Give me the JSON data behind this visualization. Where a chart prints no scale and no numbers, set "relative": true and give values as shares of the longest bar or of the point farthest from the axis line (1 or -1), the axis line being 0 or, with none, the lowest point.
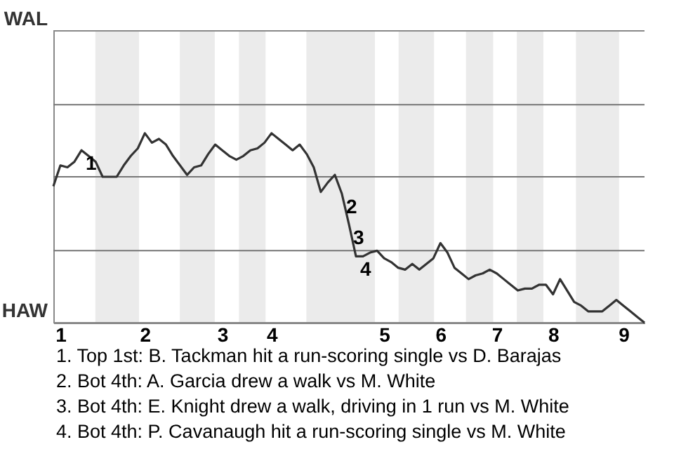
{
  "chart_data": {
    "type": "line",
    "relative": true,
    "categories": [
      null,
      "1",
      null,
      null,
      null,
      null,
      null,
      null,
      null,
      null,
      null,
      null,
      null,
      "2",
      null,
      null,
      null,
      null,
      null,
      null,
      null,
      null,
      null,
      null,
      "3",
      null,
      null,
      null,
      null,
      null,
      null,
      "4",
      null,
      null,
      null,
      null,
      null,
      null,
      null,
      null,
      null,
      null,
      null,
      null,
      null,
      null,
      null,
      "5",
      null,
      null,
      null,
      null,
      null,
      null,
      null,
      "6",
      null,
      null,
      null,
      null,
      null,
      null,
      null,
      "7",
      null,
      null,
      null,
      null,
      null,
      null,
      null,
      "8",
      null,
      null,
      null,
      null,
      null,
      null,
      null,
      null,
      null,
      "9",
      null,
      null,
      null
    ],
    "series": [
      {
        "color": "#333333",
        "values": [
          0.72,
          0.83,
          0.82,
          0.85,
          0.91,
          0.88,
          0.85,
          0.77,
          0.77,
          0.77,
          0.83,
          0.88,
          0.92,
          1,
          0.95,
          0.97,
          0.94,
          0.88,
          0.83,
          0.78,
          0.82,
          0.83,
          0.89,
          0.94,
          0.91,
          0.88,
          0.86,
          0.88,
          0.91,
          0.92,
          0.95,
          1,
          0.97,
          0.94,
          0.91,
          0.94,
          0.89,
          0.82,
          0.69,
          0.74,
          0.78,
          0.68,
          0.52,
          0.35,
          0.35,
          0.37,
          0.38,
          0.34,
          0.32,
          0.29,
          0.28,
          0.31,
          0.28,
          0.31,
          0.34,
          0.42,
          0.37,
          0.29,
          0.26,
          0.23,
          0.25,
          0.26,
          0.28,
          0.26,
          0.23,
          0.2,
          0.17,
          0.18,
          0.18,
          0.2,
          0.2,
          0.15,
          0.23,
          0.17,
          0.11,
          0.09,
          0.06,
          0.06,
          0.06,
          0.09,
          0.12,
          0.09,
          0.06,
          0.03,
          0
        ]
      }
    ],
    "ref_lines": [
      {
        "axis": "y",
        "value": 0,
        "label": "HAW",
        "color": "#888888"
      },
      {
        "axis": "y",
        "value": 0.38,
        "color": "#777777"
      },
      {
        "axis": "y",
        "value": 0.77,
        "color": "#777777"
      },
      {
        "axis": "y",
        "value": 1.15,
        "color": "#777777"
      },
      {
        "axis": "y",
        "value": 1.54,
        "label": "WAL",
        "color": "#888888"
      }
    ],
    "annotations": [
      "1",
      "2",
      "3",
      "4",
      "1. Top 1st: B. Tackman hit a run-scoring single vs D. Barajas",
      "2. Bot 4th: A. Garcia drew a walk vs M. White",
      "3. Bot 4th: E. Knight drew a walk, driving in 1 run vs M. White",
      "4. Bot 4th: P. Cavanaugh hit a run-scoring single vs M. White"
    ]
  }
}
